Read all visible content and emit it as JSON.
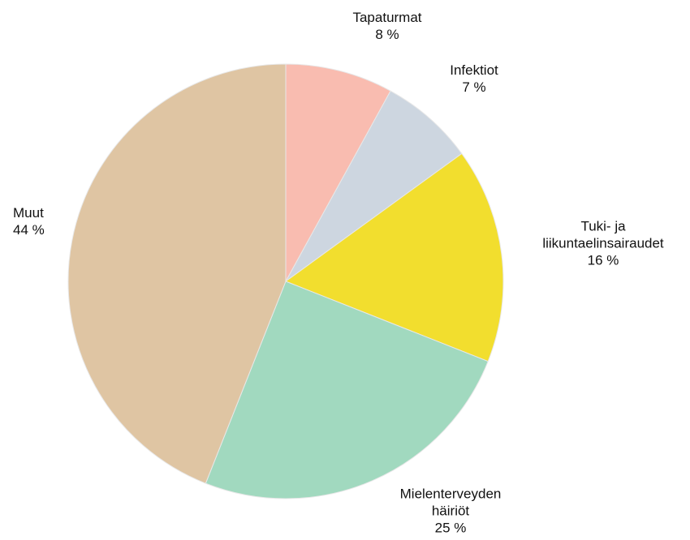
{
  "chart_data": {
    "type": "pie",
    "categories": [
      "Tapaturmat",
      "Infektiot",
      "Tuki- ja\nliikuntaelinsairaudet",
      "Mielenterveyden\nhäiriöt",
      "Muut"
    ],
    "values": [
      8,
      7,
      16,
      25,
      44
    ],
    "value_labels": [
      "8 %",
      "7 %",
      "16 %",
      "25 %",
      "44 %"
    ],
    "colors": [
      "#f9bcb0",
      "#cdd6e0",
      "#f2de2e",
      "#a1d9bf",
      "#dfc5a3"
    ]
  }
}
